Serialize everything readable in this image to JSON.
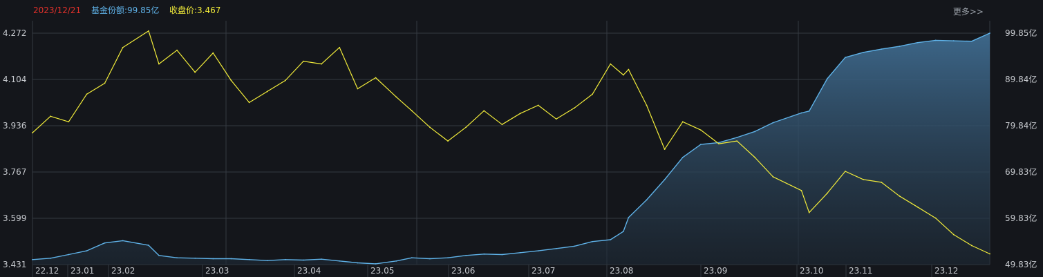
{
  "header": {
    "date": "2023/12/21",
    "share_label": "基金份额:99.85亿",
    "price_label": "收盘价:3.467",
    "more_label": "更多>>"
  },
  "colors": {
    "background": "#14161b",
    "grid": "#353a42",
    "date": "#e0302a",
    "share": "#5fb2e8",
    "price": "#f2ec3a"
  },
  "chart_data": {
    "type": "line",
    "title": "",
    "xlabel": "",
    "ylabel": "",
    "x_tick_labels": [
      "22.12",
      "23.01",
      "23.02",
      "23.03",
      "23.04",
      "23.05",
      "23.06",
      "23.07",
      "23.08",
      "23.09",
      "23.10",
      "23.11",
      "23.12"
    ],
    "left_axis": {
      "labels": [
        "4.272",
        "4.104",
        "3.936",
        "3.767",
        "3.599",
        "3.431"
      ],
      "ylim": [
        3.431,
        4.272
      ]
    },
    "right_axis": {
      "labels": [
        "99.85亿",
        "89.84亿",
        "79.84亿",
        "69.83亿",
        "59.83亿",
        "49.83亿"
      ],
      "ylim": [
        49.83,
        99.85
      ]
    },
    "grid": true,
    "series": [
      {
        "name": "收盘价",
        "axis": "left",
        "style": "line",
        "x": [
          "2022-12-15",
          "2022-12-22",
          "2022-12-29",
          "2023-01-05",
          "2023-01-12",
          "2023-01-19",
          "2023-01-29",
          "2023-02-02",
          "2023-02-09",
          "2023-02-16",
          "2023-02-23",
          "2023-03-02",
          "2023-03-09",
          "2023-03-16",
          "2023-03-23",
          "2023-03-30",
          "2023-04-06",
          "2023-04-13",
          "2023-04-20",
          "2023-04-27",
          "2023-05-05",
          "2023-05-11",
          "2023-05-18",
          "2023-05-25",
          "2023-06-01",
          "2023-06-08",
          "2023-06-15",
          "2023-06-22",
          "2023-06-29",
          "2023-07-06",
          "2023-07-13",
          "2023-07-20",
          "2023-07-27",
          "2023-08-01",
          "2023-08-03",
          "2023-08-10",
          "2023-08-17",
          "2023-08-24",
          "2023-08-31",
          "2023-09-07",
          "2023-09-14",
          "2023-09-21",
          "2023-09-28",
          "2023-10-09",
          "2023-10-12",
          "2023-10-19",
          "2023-10-26",
          "2023-11-02",
          "2023-11-09",
          "2023-11-16",
          "2023-11-23",
          "2023-11-30",
          "2023-12-07",
          "2023-12-14",
          "2023-12-21"
        ],
        "values": [
          3.91,
          3.97,
          3.95,
          4.05,
          4.09,
          4.22,
          4.28,
          4.16,
          4.21,
          4.13,
          4.2,
          4.1,
          4.02,
          4.06,
          4.1,
          4.17,
          4.16,
          4.22,
          4.07,
          4.11,
          4.04,
          3.99,
          3.93,
          3.88,
          3.93,
          3.99,
          3.94,
          3.98,
          4.01,
          3.96,
          4.0,
          4.05,
          4.16,
          4.12,
          4.14,
          4.01,
          3.85,
          3.95,
          3.92,
          3.87,
          3.88,
          3.82,
          3.75,
          3.7,
          3.62,
          3.69,
          3.77,
          3.74,
          3.73,
          3.68,
          3.64,
          3.6,
          3.54,
          3.5,
          3.47
        ]
      },
      {
        "name": "基金份额",
        "axis": "right",
        "style": "area",
        "x": [
          "2022-12-15",
          "2022-12-22",
          "2022-12-29",
          "2023-01-05",
          "2023-01-12",
          "2023-01-19",
          "2023-01-29",
          "2023-02-02",
          "2023-02-09",
          "2023-02-16",
          "2023-02-23",
          "2023-03-02",
          "2023-03-09",
          "2023-03-16",
          "2023-03-23",
          "2023-03-30",
          "2023-04-06",
          "2023-04-13",
          "2023-04-20",
          "2023-04-27",
          "2023-05-05",
          "2023-05-11",
          "2023-05-18",
          "2023-05-25",
          "2023-06-01",
          "2023-06-08",
          "2023-06-15",
          "2023-06-22",
          "2023-06-29",
          "2023-07-06",
          "2023-07-13",
          "2023-07-20",
          "2023-07-27",
          "2023-08-01",
          "2023-08-03",
          "2023-08-10",
          "2023-08-17",
          "2023-08-24",
          "2023-08-31",
          "2023-09-07",
          "2023-09-14",
          "2023-09-21",
          "2023-09-28",
          "2023-10-09",
          "2023-10-12",
          "2023-10-19",
          "2023-10-26",
          "2023-11-02",
          "2023-11-09",
          "2023-11-16",
          "2023-11-23",
          "2023-11-30",
          "2023-12-07",
          "2023-12-14",
          "2023-12-21"
        ],
        "values": [
          50.9,
          51.2,
          52.0,
          52.8,
          54.5,
          55.0,
          54.0,
          51.8,
          51.3,
          51.2,
          51.1,
          51.1,
          50.9,
          50.7,
          50.9,
          50.8,
          51.0,
          50.6,
          50.2,
          50.0,
          50.6,
          51.3,
          51.1,
          51.3,
          51.8,
          52.1,
          52.0,
          52.4,
          52.8,
          53.3,
          53.8,
          54.8,
          55.2,
          57.0,
          60.0,
          63.8,
          68.2,
          73.0,
          75.8,
          76.2,
          77.3,
          78.6,
          80.5,
          82.6,
          83.0,
          90.0,
          94.6,
          95.7,
          96.4,
          97.0,
          97.8,
          98.3,
          98.2,
          98.1,
          99.85
        ]
      }
    ]
  }
}
